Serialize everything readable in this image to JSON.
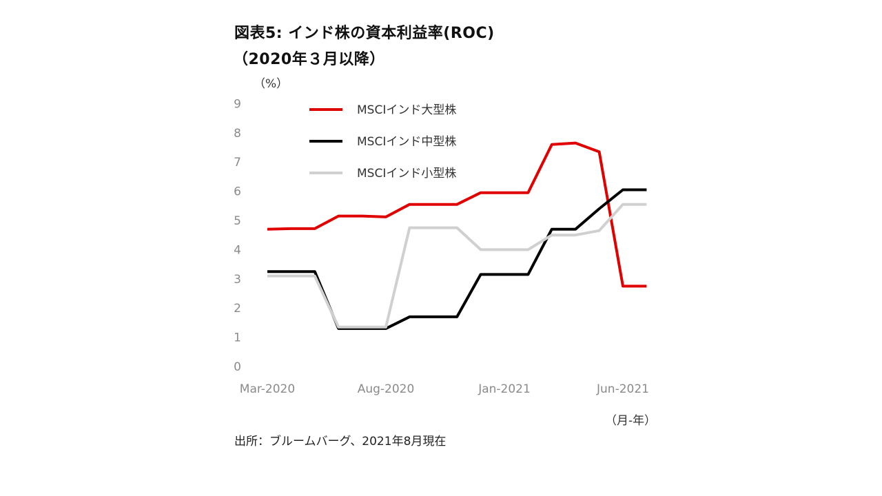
{
  "title_line1": "図表5: インド株の資本利益率(ROC)",
  "title_line2": "（2020年３月以降）",
  "source": "出所：ブルームバーグ、2021年8月現在",
  "chart_data": {
    "type": "line",
    "ylabel": "（%）",
    "xlabel": "（月-年）",
    "ylim": [
      0,
      9
    ],
    "yticks": [
      "0",
      "1",
      "2",
      "3",
      "4",
      "5",
      "6",
      "7",
      "8",
      "9"
    ],
    "x": [
      "2020-03",
      "2020-04",
      "2020-05",
      "2020-06",
      "2020-07",
      "2020-08",
      "2020-09",
      "2020-10",
      "2020-11",
      "2020-12",
      "2021-01",
      "2021-02",
      "2021-03",
      "2021-04",
      "2021-05",
      "2021-06",
      "2021-07"
    ],
    "xtick_labels": [
      {
        "label": "Mar-2020",
        "index": 0
      },
      {
        "label": "Aug-2020",
        "index": 5
      },
      {
        "label": "Jan-2021",
        "index": 10
      },
      {
        "label": "Jun-2021",
        "index": 15
      }
    ],
    "grid": false,
    "legend_position": "top-left",
    "series": [
      {
        "name": "MSCIインド大型株",
        "color": "#e00000",
        "points": [
          [
            0,
            4.7
          ],
          [
            1,
            4.72
          ],
          [
            2,
            4.72
          ],
          [
            3,
            5.15
          ],
          [
            4,
            5.15
          ],
          [
            5,
            5.12
          ],
          [
            6,
            5.55
          ],
          [
            7,
            5.55
          ],
          [
            8,
            5.55
          ],
          [
            9,
            5.95
          ],
          [
            10,
            5.95
          ],
          [
            11,
            5.95
          ],
          [
            12,
            7.6
          ],
          [
            13,
            7.65
          ],
          [
            14,
            7.35
          ],
          [
            15,
            2.75
          ],
          [
            16,
            2.75
          ]
        ]
      },
      {
        "name": "MSCIインド中型株",
        "color": "#000000",
        "points": [
          [
            0,
            3.25
          ],
          [
            1,
            3.25
          ],
          [
            2,
            3.25
          ],
          [
            3,
            1.3
          ],
          [
            4,
            1.3
          ],
          [
            5,
            1.3
          ],
          [
            6,
            1.7
          ],
          [
            7,
            1.7
          ],
          [
            8,
            1.7
          ],
          [
            9,
            3.15
          ],
          [
            10,
            3.15
          ],
          [
            11,
            3.15
          ],
          [
            12,
            4.7
          ],
          [
            13,
            4.7
          ],
          [
            14,
            5.4
          ],
          [
            15,
            6.05
          ],
          [
            16,
            6.05
          ]
        ]
      },
      {
        "name": "MSCIインド小型株",
        "color": "#d0d0d0",
        "points": [
          [
            0,
            3.1
          ],
          [
            1,
            3.1
          ],
          [
            2,
            3.1
          ],
          [
            3,
            1.35
          ],
          [
            4,
            1.35
          ],
          [
            5,
            1.35
          ],
          [
            6,
            4.75
          ],
          [
            7,
            4.75
          ],
          [
            8,
            4.75
          ],
          [
            9,
            4.0
          ],
          [
            10,
            4.0
          ],
          [
            11,
            4.0
          ],
          [
            12,
            4.5
          ],
          [
            13,
            4.5
          ],
          [
            14,
            4.65
          ],
          [
            15,
            5.55
          ],
          [
            16,
            5.55
          ]
        ]
      }
    ]
  }
}
